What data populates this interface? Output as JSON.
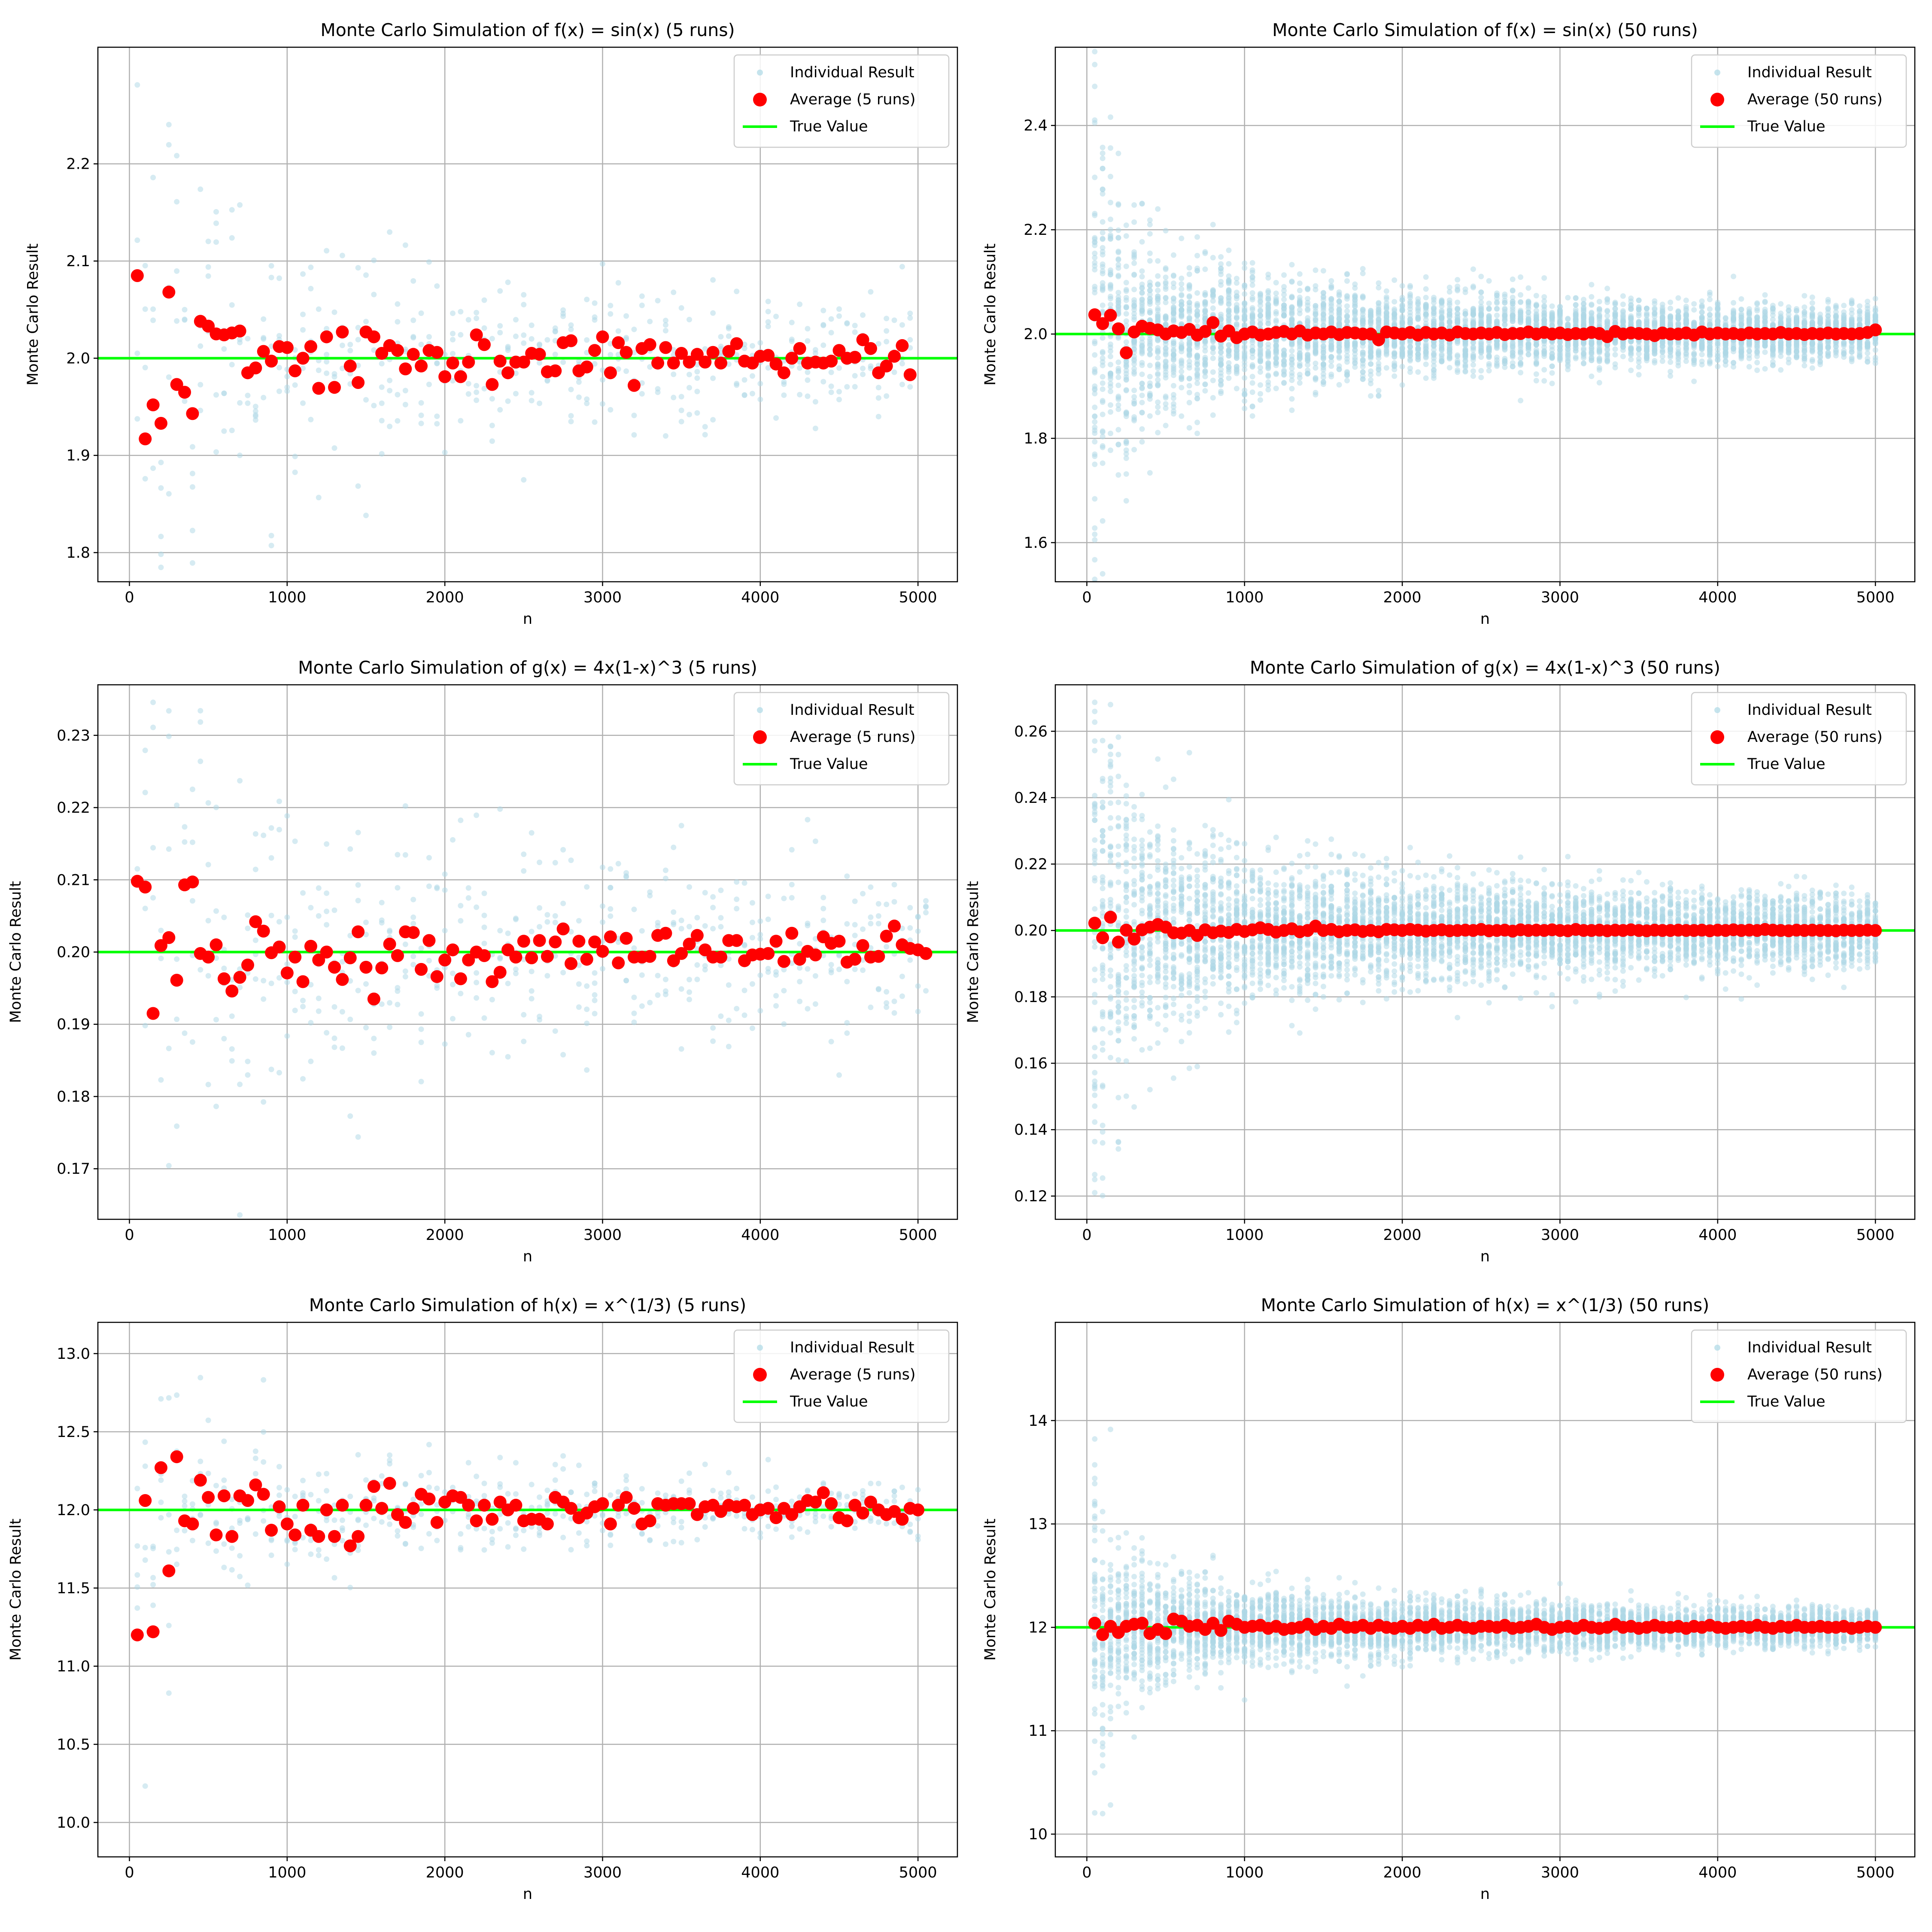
{
  "figure": {
    "colors": {
      "individual": "#add8e6",
      "average": "#ff0000",
      "true_value": "#00ff00"
    }
  },
  "chart_data": [
    {
      "id": "sin5",
      "type": "scatter",
      "title": "Monte Carlo Simulation of f(x) = sin(x) (5 runs)",
      "xlabel": "n",
      "ylabel": "Monte Carlo Result",
      "xlim": [
        -200,
        5250
      ],
      "ylim": [
        1.77,
        2.32
      ],
      "xticks": [
        0,
        1000,
        2000,
        3000,
        4000,
        5000
      ],
      "yticks": [
        1.8,
        1.9,
        2.0,
        2.1,
        2.2
      ],
      "ytick_labels": [
        "1.8",
        "1.9",
        "2.0",
        "2.1",
        "2.2"
      ],
      "true_value": 2.0,
      "runs": 5,
      "legend": {
        "position": "top-right",
        "individual": "Individual Result",
        "average": "Average (5 runs)",
        "true": "True Value"
      },
      "average_y": [
        2.085,
        1.917,
        1.952,
        1.933,
        2.068,
        1.973,
        1.965,
        1.943,
        2.038,
        2.033,
        2.025,
        2.024,
        2.026,
        2.028,
        1.985,
        1.99,
        2.007,
        1.997,
        2.012,
        2.011,
        1.987,
        2.0,
        2.012,
        1.969,
        2.022,
        1.97,
        2.027,
        1.992,
        1.975,
        2.027,
        2.022,
        2.005,
        2.013,
        2.008,
        1.989,
        2.004,
        1.992,
        2.008,
        2.006,
        1.981,
        1.995,
        1.981,
        1.996,
        2.024,
        2.014,
        1.973,
        1.997,
        1.985,
        1.996,
        1.996,
        2.005,
        2.004,
        1.986,
        1.987,
        2.016,
        2.018,
        1.987,
        1.991,
        2.008,
        2.022,
        1.985,
        2.016,
        2.006,
        1.972,
        2.01,
        2.014,
        1.995,
        2.011,
        1.995,
        2.005,
        1.996,
        2.004,
        1.996,
        2.006,
        1.995,
        2.007,
        2.015,
        1.997,
        1.995,
        2.002,
        2.003,
        1.994,
        1.985,
        2.0,
        2.01,
        1.995,
        1.996,
        1.995,
        1.997,
        2.008,
        2.0,
        2.001,
        2.019,
        2.01,
        1.985,
        1.992,
        2.002,
        2.013,
        1.983
      ]
    },
    {
      "id": "sin50",
      "type": "scatter",
      "title": "Monte Carlo Simulation of f(x) = sin(x) (50 runs)",
      "xlabel": "n",
      "ylabel": "Monte Carlo Result",
      "xlim": [
        -200,
        5250
      ],
      "ylim": [
        1.525,
        2.55
      ],
      "xticks": [
        0,
        1000,
        2000,
        3000,
        4000,
        5000
      ],
      "yticks": [
        1.6,
        1.8,
        2.0,
        2.2,
        2.4
      ],
      "ytick_labels": [
        "1.6",
        "1.8",
        "2.0",
        "2.2",
        "2.4"
      ],
      "true_value": 2.0,
      "runs": 50,
      "legend": {
        "position": "top-right",
        "individual": "Individual Result",
        "average": "Average (50 runs)",
        "true": "True Value"
      },
      "average_y": [
        2.037,
        2.02,
        2.036,
        2.01,
        1.964,
        2.004,
        2.015,
        2.011,
        2.008,
        2.0,
        2.006,
        2.003,
        2.009,
        1.998,
        2.005,
        2.022,
        1.996,
        2.006,
        1.993,
        2.0,
        2.004,
        1.998,
        2.0,
        2.003,
        2.005,
        2.0,
        2.006,
        1.998,
        2.002,
        2.0,
        2.004,
        1.999,
        2.003,
        2.002,
        2.0,
        2.0,
        1.989,
        2.004,
        2.002,
        2.0,
        2.003,
        1.998,
        2.003,
        2.0,
        2.002,
        1.998,
        2.004,
        2.001,
        2.0,
        2.002,
        2.0,
        2.003,
        1.999,
        2.001,
        2.001,
        2.004,
        2.0,
        2.003,
        2.0,
        2.002,
        1.999,
        2.001,
        2.0,
        2.003,
        2.001,
        1.995,
        2.005,
        2.0,
        2.002,
        2.001,
        2.0,
        1.997,
        2.002,
        2.0,
        2.0,
        2.002,
        1.998,
        2.004,
        2.0,
        2.002,
        2.0,
        2.001,
        1.999,
        2.002,
        2.0,
        2.001,
        2.0,
        2.003,
        2.0,
        2.001,
        1.999,
        2.001,
        2.0,
        2.002,
        2.0,
        2.001,
        2.0,
        2.001,
        2.003,
        2.008
      ]
    },
    {
      "id": "g5",
      "type": "scatter",
      "title": "Monte Carlo Simulation of g(x) = 4x(1-x)^3 (5 runs)",
      "xlabel": "n",
      "ylabel": "Monte Carlo Result",
      "xlim": [
        -200,
        5250
      ],
      "ylim": [
        0.163,
        0.237
      ],
      "xticks": [
        0,
        1000,
        2000,
        3000,
        4000,
        5000
      ],
      "yticks": [
        0.17,
        0.18,
        0.19,
        0.2,
        0.21,
        0.22,
        0.23
      ],
      "ytick_labels": [
        "0.17",
        "0.18",
        "0.19",
        "0.20",
        "0.21",
        "0.22",
        "0.23"
      ],
      "true_value": 0.2,
      "runs": 5,
      "legend": {
        "position": "top-right",
        "individual": "Individual Result",
        "average": "Average (5 runs)",
        "true": "True Value"
      },
      "average_y": [
        0.2098,
        0.209,
        0.1915,
        0.2009,
        0.202,
        0.1961,
        0.2093,
        0.2097,
        0.1998,
        0.1993,
        0.201,
        0.1963,
        0.1946,
        0.1965,
        0.1982,
        0.2042,
        0.2029,
        0.1999,
        0.2007,
        0.1971,
        0.1993,
        0.1959,
        0.2008,
        0.1989,
        0.2,
        0.1979,
        0.1962,
        0.1992,
        0.2028,
        0.1979,
        0.1935,
        0.1978,
        0.2011,
        0.1995,
        0.2028,
        0.2027,
        0.1976,
        0.2016,
        0.1966,
        0.1989,
        0.2003,
        0.1963,
        0.1989,
        0.2,
        0.1995,
        0.1959,
        0.1972,
        0.2003,
        0.1993,
        0.2015,
        0.1992,
        0.2016,
        0.1994,
        0.2014,
        0.2032,
        0.1984,
        0.2015,
        0.199,
        0.2014,
        0.2001,
        0.2021,
        0.1985,
        0.2019,
        0.1993,
        0.1993,
        0.1994,
        0.2023,
        0.2026,
        0.1988,
        0.1998,
        0.2011,
        0.2023,
        0.2003,
        0.1993,
        0.1993,
        0.2016,
        0.2016,
        0.1988,
        0.1996,
        0.1997,
        0.1998,
        0.2015,
        0.1987,
        0.2026,
        0.199,
        0.2001,
        0.1996,
        0.2021,
        0.2012,
        0.2015,
        0.1986,
        0.199,
        0.2009,
        0.1993,
        0.1994,
        0.2022,
        0.2036,
        0.201,
        0.2005,
        0.2003,
        0.1998
      ]
    },
    {
      "id": "g50",
      "type": "scatter",
      "title": "Monte Carlo Simulation of g(x) = 4x(1-x)^3 (50 runs)",
      "xlabel": "n",
      "ylabel": "Monte Carlo Result",
      "xlim": [
        -200,
        5250
      ],
      "ylim": [
        0.113,
        0.274
      ],
      "xticks": [
        0,
        1000,
        2000,
        3000,
        4000,
        5000
      ],
      "yticks": [
        0.12,
        0.14,
        0.16,
        0.18,
        0.2,
        0.22,
        0.24,
        0.26
      ],
      "ytick_labels": [
        "0.12",
        "0.14",
        "0.16",
        "0.18",
        "0.20",
        "0.22",
        "0.24",
        "0.26"
      ],
      "true_value": 0.2,
      "runs": 50,
      "legend": {
        "position": "top-right",
        "individual": "Individual Result",
        "average": "Average (50 runs)",
        "true": "True Value"
      },
      "average_y": [
        0.2022,
        0.1978,
        0.204,
        0.1965,
        0.2001,
        0.1974,
        0.2002,
        0.201,
        0.2018,
        0.201,
        0.1993,
        0.1992,
        0.2,
        0.1985,
        0.2002,
        0.1993,
        0.1998,
        0.1994,
        0.2003,
        0.1997,
        0.2002,
        0.2008,
        0.2003,
        0.1995,
        0.2,
        0.2005,
        0.1996,
        0.2,
        0.2013,
        0.2,
        0.2003,
        0.1996,
        0.2,
        0.2002,
        0.1997,
        0.2,
        0.1996,
        0.2003,
        0.2002,
        0.2,
        0.2003,
        0.2001,
        0.1998,
        0.2,
        0.2002,
        0.1999,
        0.2,
        0.2001,
        0.2,
        0.2003,
        0.1999,
        0.2,
        0.2001,
        0.1998,
        0.2002,
        0.2,
        0.2001,
        0.2,
        0.2002,
        0.2,
        0.1999,
        0.2003,
        0.2,
        0.2,
        0.2001,
        0.1999,
        0.2001,
        0.2,
        0.2002,
        0.2,
        0.1999,
        0.2001,
        0.2,
        0.2,
        0.2001,
        0.2,
        0.2,
        0.2001,
        0.1999,
        0.2001,
        0.2,
        0.2002,
        0.2,
        0.2001,
        0.2,
        0.2003,
        0.2001,
        0.2,
        0.1999,
        0.2001,
        0.2,
        0.2001,
        0.2,
        0.2,
        0.1999,
        0.2001,
        0.2,
        0.2,
        0.2001,
        0.2
      ]
    },
    {
      "id": "h5",
      "type": "scatter",
      "title": "Monte Carlo Simulation of h(x) = x^(1/3) (5 runs)",
      "xlabel": "n",
      "ylabel": "Monte Carlo Result",
      "xlim": [
        -200,
        5250
      ],
      "ylim": [
        9.78,
        13.2
      ],
      "xticks": [
        0,
        1000,
        2000,
        3000,
        4000,
        5000
      ],
      "yticks": [
        10.0,
        10.5,
        11.0,
        11.5,
        12.0,
        12.5,
        13.0
      ],
      "ytick_labels": [
        "10.0",
        "10.5",
        "11.0",
        "11.5",
        "12.0",
        "12.5",
        "13.0"
      ],
      "true_value": 12.0,
      "runs": 5,
      "legend": {
        "position": "top-right",
        "individual": "Individual Result",
        "average": "Average (5 runs)",
        "true": "True Value"
      },
      "average_y": [
        11.2,
        12.06,
        11.22,
        12.27,
        11.61,
        12.34,
        11.93,
        11.91,
        12.19,
        12.08,
        11.84,
        12.09,
        11.83,
        12.09,
        12.06,
        12.16,
        12.1,
        11.87,
        12.02,
        11.91,
        11.84,
        12.03,
        11.87,
        11.83,
        12.0,
        11.83,
        12.03,
        11.77,
        11.83,
        12.03,
        12.15,
        12.01,
        12.17,
        11.97,
        11.92,
        12.01,
        12.1,
        12.07,
        11.92,
        12.05,
        12.09,
        12.08,
        12.03,
        11.93,
        12.03,
        11.94,
        12.05,
        12.0,
        12.03,
        11.93,
        11.94,
        11.94,
        11.91,
        12.08,
        12.05,
        12.01,
        11.95,
        11.98,
        12.02,
        12.04,
        11.91,
        12.03,
        12.08,
        12.01,
        11.91,
        11.93,
        12.04,
        12.03,
        12.04,
        12.04,
        12.04,
        11.97,
        12.02,
        12.03,
        11.99,
        12.03,
        12.02,
        12.03,
        11.97,
        12.0,
        12.01,
        11.95,
        12.01,
        11.97,
        12.02,
        12.06,
        12.05,
        12.11,
        12.04,
        11.95,
        11.93,
        12.03,
        11.98,
        12.05,
        12.0,
        11.97,
        11.99,
        11.94,
        12.01,
        12.0
      ]
    },
    {
      "id": "h50",
      "type": "scatter",
      "title": "Monte Carlo Simulation of h(x) = x^(1/3) (50 runs)",
      "xlabel": "n",
      "ylabel": "Monte Carlo Result",
      "xlim": [
        -200,
        5250
      ],
      "ylim": [
        9.78,
        14.95
      ],
      "xticks": [
        0,
        1000,
        2000,
        3000,
        4000,
        5000
      ],
      "yticks": [
        10,
        11,
        12,
        13,
        14
      ],
      "ytick_labels": [
        "10",
        "11",
        "12",
        "13",
        "14"
      ],
      "true_value": 12.0,
      "runs": 50,
      "legend": {
        "position": "top-right",
        "individual": "Individual Result",
        "average": "Average (50 runs)",
        "true": "True Value"
      },
      "average_y": [
        12.04,
        11.93,
        12.01,
        11.95,
        12.01,
        12.03,
        12.04,
        11.94,
        11.98,
        11.94,
        12.08,
        12.06,
        12.01,
        12.02,
        11.98,
        12.04,
        11.97,
        12.06,
        12.03,
        12.0,
        12.01,
        12.02,
        11.99,
        12.01,
        11.98,
        11.99,
        12.0,
        12.03,
        11.98,
        12.01,
        11.99,
        12.03,
        12.0,
        12.0,
        12.02,
        11.99,
        12.02,
        12.0,
        11.99,
        12.01,
        11.99,
        12.02,
        12.0,
        12.03,
        11.99,
        12.0,
        12.02,
        12.0,
        11.99,
        12.01,
        12.01,
        12.0,
        12.02,
        11.99,
        12.0,
        12.01,
        12.03,
        12.0,
        11.98,
        12.0,
        12.01,
        11.99,
        12.02,
        12.0,
        11.99,
        12.0,
        12.03,
        12.0,
        12.01,
        11.99,
        12.0,
        12.02,
        12.0,
        12.0,
        12.01,
        11.99,
        12.01,
        12.0,
        12.02,
        12.0,
        11.99,
        12.0,
        12.01,
        12.0,
        12.02,
        12.0,
        11.99,
        12.01,
        12.0,
        12.02,
        12.0,
        12.0,
        12.01,
        12.0,
        12.0,
        12.01,
        11.99,
        12.0,
        12.01,
        12.0
      ]
    }
  ]
}
